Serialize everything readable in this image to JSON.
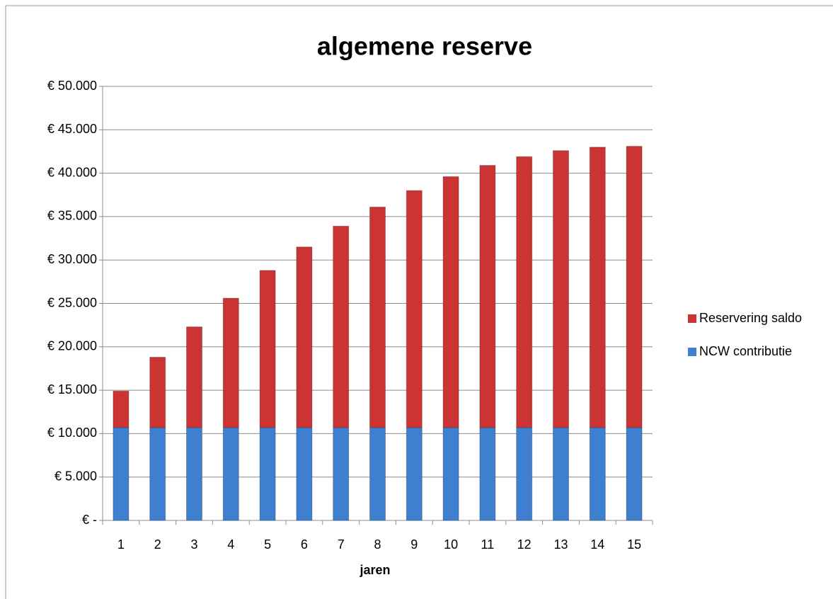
{
  "chart_data": {
    "type": "stacked_bar",
    "title": "algemene reserve",
    "x_label": "jaren",
    "categories": [
      "1",
      "2",
      "3",
      "4",
      "5",
      "6",
      "7",
      "8",
      "9",
      "10",
      "11",
      "12",
      "13",
      "14",
      "15"
    ],
    "series": [
      {
        "name": "NCW contributie",
        "color": "#3f7fd0",
        "values": [
          10700,
          10700,
          10700,
          10700,
          10700,
          10700,
          10700,
          10700,
          10700,
          10700,
          10700,
          10700,
          10700,
          10700,
          10700
        ]
      },
      {
        "name": "Reservering saldo",
        "color": "#cc3333",
        "values": [
          4200,
          8100,
          11600,
          14900,
          18100,
          20800,
          23200,
          25400,
          27300,
          28900,
          30200,
          31200,
          31900,
          32300,
          32400
        ]
      }
    ],
    "ylim": [
      0,
      50000
    ],
    "yticks": [
      {
        "value": 0,
        "label": "€ -"
      },
      {
        "value": 5000,
        "label": "€ 5.000"
      },
      {
        "value": 10000,
        "label": "€ 10.000"
      },
      {
        "value": 15000,
        "label": "€ 15.000"
      },
      {
        "value": 20000,
        "label": "€ 20.000"
      },
      {
        "value": 25000,
        "label": "€ 25.000"
      },
      {
        "value": 30000,
        "label": "€ 30.000"
      },
      {
        "value": 35000,
        "label": "€ 35.000"
      },
      {
        "value": 40000,
        "label": "€ 40.000"
      },
      {
        "value": 45000,
        "label": "€ 45.000"
      },
      {
        "value": 50000,
        "label": "€ 50.000"
      }
    ],
    "grid": true,
    "legend": "right"
  }
}
